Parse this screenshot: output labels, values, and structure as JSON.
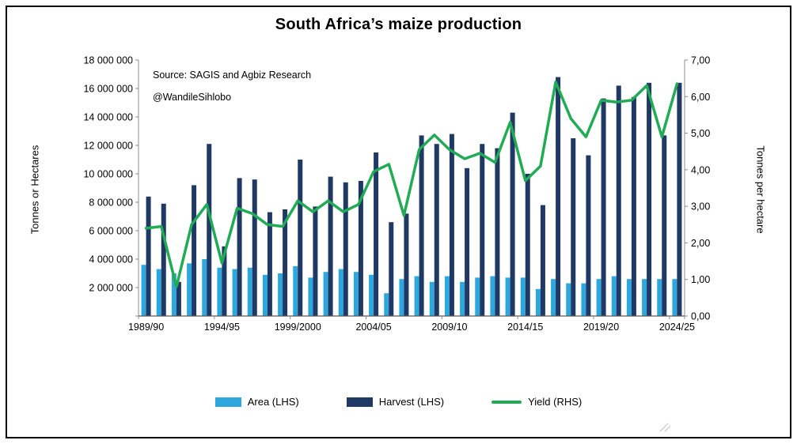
{
  "chart_data": {
    "type": "combo",
    "title": "South Africa’s maize production",
    "categories": [
      "1989/90",
      "1990/91",
      "1991/92",
      "1992/93",
      "1993/94",
      "1994/95",
      "1995/96",
      "1996/97",
      "1997/98",
      "1998/99",
      "1999/2000",
      "2000/01",
      "2001/02",
      "2002/03",
      "2003/04",
      "2004/05",
      "2005/06",
      "2006/07",
      "2007/08",
      "2008/09",
      "2009/10",
      "2010/11",
      "2011/12",
      "2012/13",
      "2013/14",
      "2014/15",
      "2015/16",
      "2016/17",
      "2017/18",
      "2018/19",
      "2019/20",
      "2020/21",
      "2021/22",
      "2022/23",
      "2023/24",
      "2024/25"
    ],
    "series": [
      {
        "name": "Area (LHS)",
        "type": "bar",
        "axis": "left",
        "color": "#2ea7df",
        "values": [
          3600000,
          3300000,
          3000000,
          3700000,
          4000000,
          3400000,
          3300000,
          3400000,
          2900000,
          3000000,
          3500000,
          2700000,
          3100000,
          3300000,
          3100000,
          2900000,
          1600000,
          2600000,
          2800000,
          2400000,
          2800000,
          2400000,
          2700000,
          2800000,
          2700000,
          2700000,
          1900000,
          2600000,
          2300000,
          2300000,
          2600000,
          2800000,
          2600000,
          2600000,
          2600000,
          2600000
        ]
      },
      {
        "name": "Harvest (LHS)",
        "type": "bar",
        "axis": "left",
        "color": "#1f3864",
        "values": [
          8400000,
          7900000,
          2400000,
          9200000,
          12100000,
          4900000,
          9700000,
          9600000,
          7300000,
          7500000,
          11000000,
          7700000,
          9800000,
          9400000,
          9500000,
          11500000,
          6600000,
          7200000,
          12700000,
          12100000,
          12800000,
          10400000,
          12100000,
          11800000,
          14300000,
          10000000,
          7800000,
          16800000,
          12500000,
          11300000,
          15300000,
          16200000,
          15400000,
          16400000,
          12700000,
          16400000
        ]
      },
      {
        "name": "Yield (RHS)",
        "type": "line",
        "axis": "right",
        "color": "#21ab55",
        "values": [
          2.4,
          2.45,
          0.8,
          2.5,
          3.05,
          1.45,
          2.95,
          2.8,
          2.5,
          2.45,
          3.15,
          2.85,
          3.15,
          2.85,
          3.05,
          3.95,
          4.15,
          2.75,
          4.55,
          4.95,
          4.55,
          4.3,
          4.45,
          4.2,
          5.3,
          3.7,
          4.1,
          6.4,
          5.4,
          4.9,
          5.9,
          5.85,
          5.9,
          6.3,
          4.9,
          6.35
        ]
      }
    ],
    "left_axis": {
      "title": "Tonnes or Hectares",
      "min": 0,
      "max": 18000000,
      "tick_step": 2000000,
      "tick_labels": [
        "2 000 000",
        "4 000 000",
        "6 000 000",
        "8 000 000",
        "10 000 000",
        "12 000 000",
        "14 000 000",
        "16 000 000",
        "18 000 000"
      ]
    },
    "right_axis": {
      "title": "Tonnes per hectare",
      "min": 0,
      "max": 7,
      "tick_step": 1,
      "tick_labels": [
        "0,00",
        "1,00",
        "2,00",
        "3,00",
        "4,00",
        "5,00",
        "6,00",
        "7,00"
      ]
    },
    "x_axis": {
      "tick_every": 5,
      "tick_labels": [
        "1989/90",
        "1994/95",
        "1999/2000",
        "2004/05",
        "2009/10",
        "2014/15",
        "2019/20",
        "2024/25"
      ]
    },
    "annotations": {
      "source": "Source: SAGIS and Agbiz Research",
      "handle": "@WandileSihlobo"
    },
    "legend": {
      "position": "bottom",
      "items": [
        {
          "label": "Area (LHS)",
          "swatch": "rect",
          "color": "#2ea7df"
        },
        {
          "label": "Harvest (LHS)",
          "swatch": "rect",
          "color": "#1f3864"
        },
        {
          "label": "Yield (RHS)",
          "swatch": "line",
          "color": "#21ab55"
        }
      ]
    },
    "grid": false,
    "ylim_left": [
      0,
      18000000
    ],
    "ylim_right": [
      0,
      7
    ]
  }
}
